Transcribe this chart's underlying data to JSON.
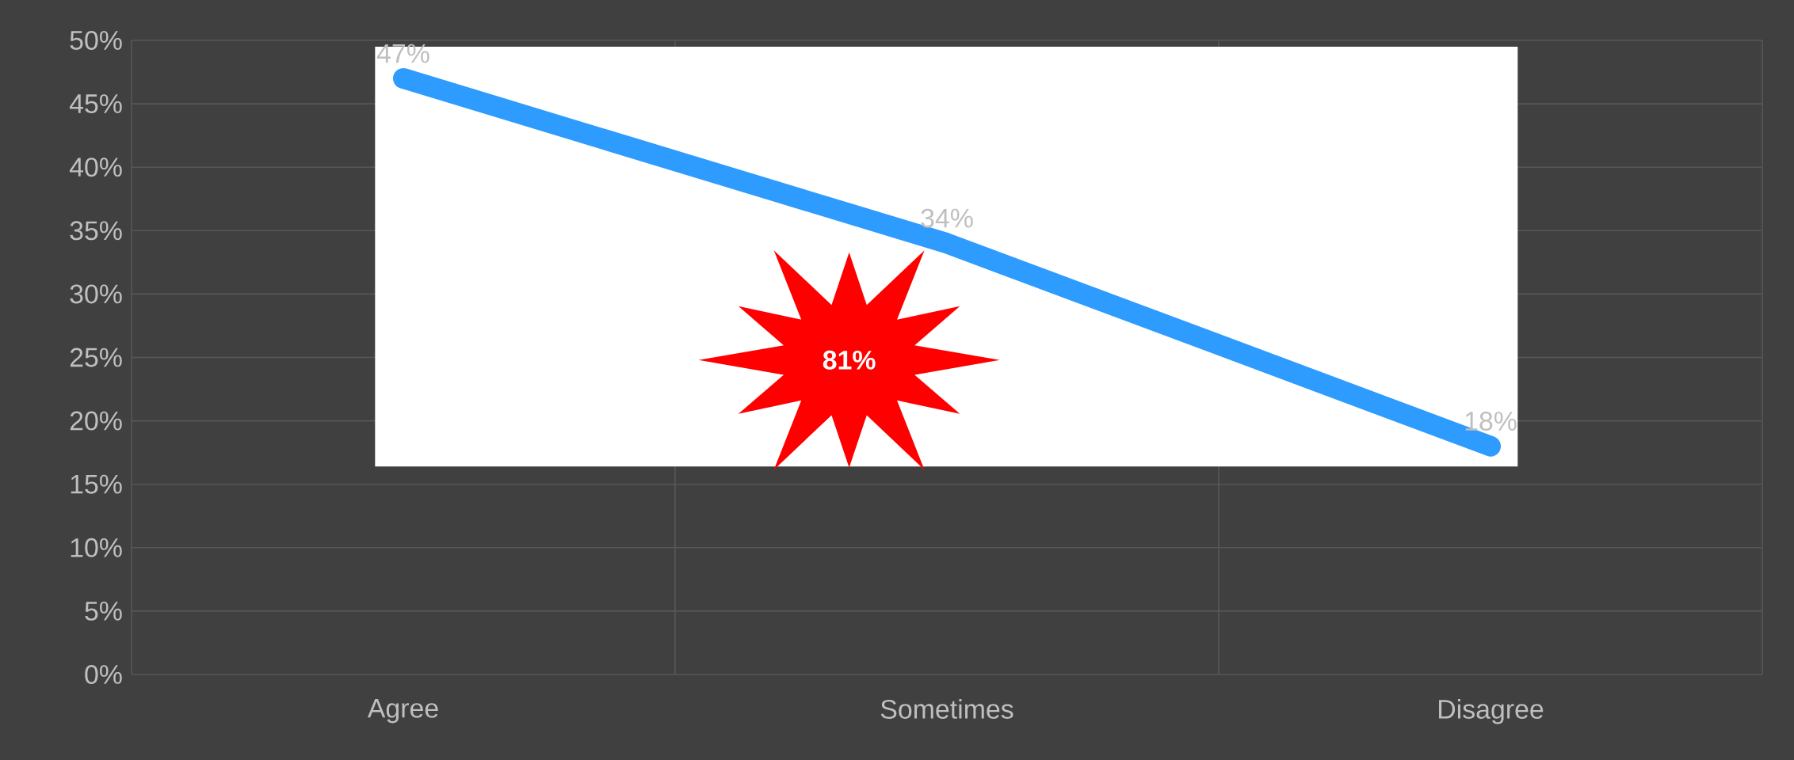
{
  "chart_data": {
    "type": "line",
    "categories": [
      "Agree",
      "Sometimes",
      "Disagree"
    ],
    "series": [
      {
        "color": "#2e9bff",
        "values": [
          47,
          34,
          18
        ],
        "value_labels": [
          "47%",
          "34%",
          "18%"
        ]
      }
    ],
    "ylim": [
      0,
      50
    ],
    "yticks": [
      {
        "value": 0,
        "label": "0%"
      },
      {
        "value": 5,
        "label": "5%"
      },
      {
        "value": 10,
        "label": "10%"
      },
      {
        "value": 15,
        "label": "15%"
      },
      {
        "value": 20,
        "label": "20%"
      },
      {
        "value": 25,
        "label": "25%"
      },
      {
        "value": 30,
        "label": "30%"
      },
      {
        "value": 35,
        "label": "35%"
      },
      {
        "value": 40,
        "label": "40%"
      },
      {
        "value": 45,
        "label": "45%"
      },
      {
        "value": 50,
        "label": "50%"
      }
    ],
    "grid": true,
    "marker": "none",
    "line_style": "solid",
    "annotations": [
      "81%"
    ]
  }
}
